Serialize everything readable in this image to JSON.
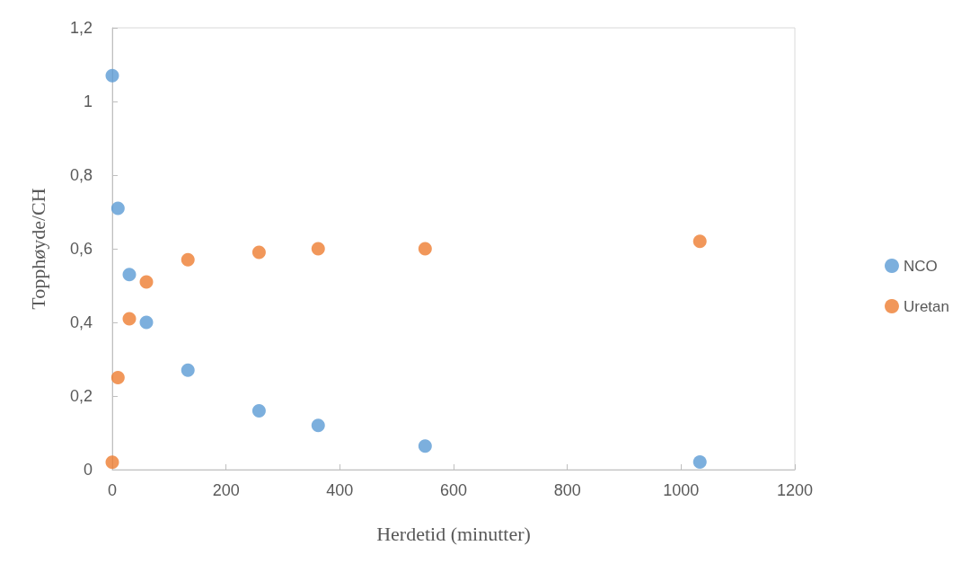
{
  "chart_data": {
    "type": "scatter",
    "xlabel": "Herdetid (minutter)",
    "ylabel": "Topphøyde/CH",
    "xlim": [
      0,
      1200
    ],
    "xticks": [
      0,
      200,
      400,
      600,
      800,
      1000,
      1200
    ],
    "ylim": [
      0,
      1.2
    ],
    "yticks": [
      {
        "value": 0,
        "label": "0"
      },
      {
        "value": 0.2,
        "label": "0,2"
      },
      {
        "value": 0.4,
        "label": "0,4"
      },
      {
        "value": 0.6,
        "label": "0,6"
      },
      {
        "value": 0.8,
        "label": "0,8"
      },
      {
        "value": 1,
        "label": "1"
      },
      {
        "value": 1.2,
        "label": "1,2"
      }
    ],
    "grid": false,
    "legend": "right",
    "marker": "circle",
    "x": [
      0,
      10,
      30,
      60,
      133,
      258,
      362,
      550,
      1033
    ],
    "series": [
      {
        "name": "NCO",
        "color": "#5b9bd5",
        "values": [
          1.07,
          0.71,
          0.53,
          0.4,
          0.27,
          0.16,
          0.12,
          0.064,
          0.021
        ]
      },
      {
        "name": "Uretan",
        "color": "#ed7d31",
        "values": [
          0.02,
          0.25,
          0.41,
          0.51,
          0.57,
          0.59,
          0.6,
          0.6,
          0.62
        ]
      }
    ]
  }
}
